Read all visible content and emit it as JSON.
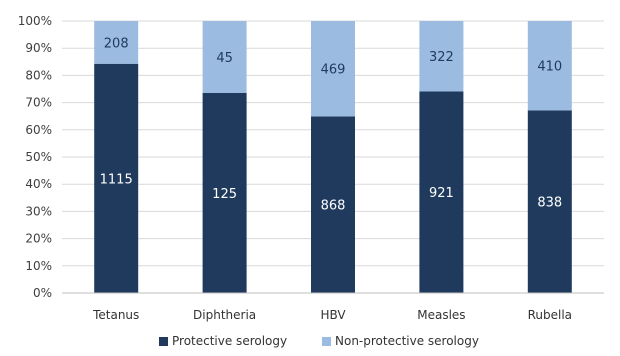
{
  "chart_data": {
    "type": "bar",
    "stacked": true,
    "normalized": true,
    "categories": [
      "Tetanus",
      "Diphtheria",
      "HBV",
      "Measles",
      "Rubella"
    ],
    "series": [
      {
        "name": "Protective serology",
        "values": [
          1115,
          125,
          868,
          921,
          838
        ],
        "color": "#1f3a5c",
        "label_color": "#ffffff"
      },
      {
        "name": "Non-protective serology",
        "values": [
          208,
          45,
          469,
          322,
          410
        ],
        "color": "#9bbbe0",
        "label_color": "#1f3a5c"
      }
    ],
    "y_ticks": [
      "0%",
      "10%",
      "20%",
      "30%",
      "40%",
      "50%",
      "60%",
      "70%",
      "80%",
      "90%",
      "100%"
    ],
    "ylim": [
      0,
      100
    ],
    "grid": true,
    "legend": "bottom"
  }
}
